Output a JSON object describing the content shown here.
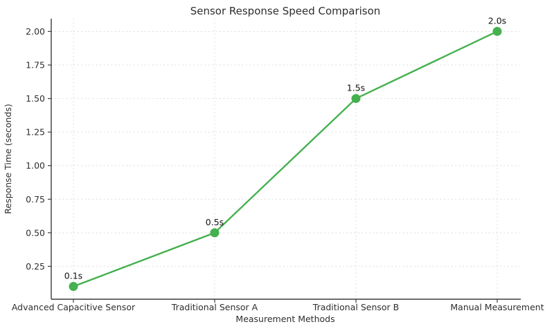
{
  "chart_data": {
    "type": "line",
    "title": "Sensor Response Speed Comparison",
    "xlabel": "Measurement Methods",
    "ylabel": "Response Time (seconds)",
    "categories": [
      "Advanced Capacitive Sensor",
      "Traditional Sensor A",
      "Traditional Sensor B",
      "Manual Measurement"
    ],
    "series": [
      {
        "name": "Response Time",
        "values": [
          0.1,
          0.5,
          1.5,
          2.0
        ],
        "point_labels": [
          "0.1s",
          "0.5s",
          "1.5s",
          "2.0s"
        ]
      }
    ],
    "yticks": [
      0.25,
      0.5,
      0.75,
      1.0,
      1.25,
      1.5,
      1.75,
      2.0
    ],
    "ylim": [
      0.005,
      2.095
    ],
    "grid": true,
    "grid_style": "dashed",
    "legend": "none",
    "colors": {
      "line": "#44b04e",
      "marker": "#44b04e",
      "grid": "#dcdcdc",
      "axis": "#3a3a3a",
      "text": "#2e2e2e",
      "point_label": "#111111",
      "background": "#ffffff"
    }
  }
}
